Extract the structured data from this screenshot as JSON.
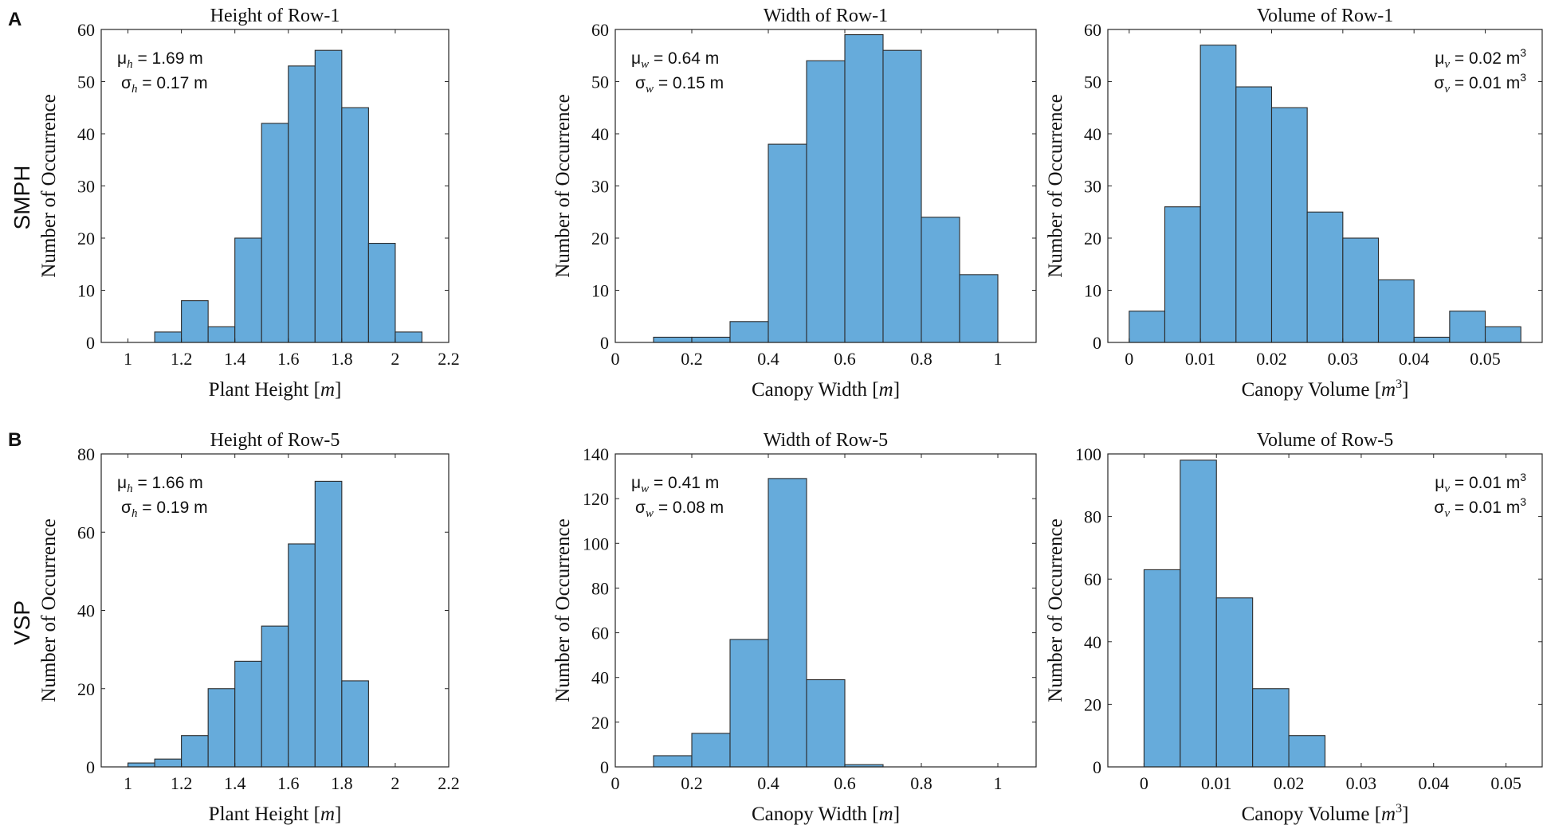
{
  "panels": [
    {
      "letter": "A",
      "row_label": "SMPH"
    },
    {
      "letter": "B",
      "row_label": "VSP"
    }
  ],
  "colors": {
    "bar_fill": "#66abdb",
    "bar_edge": "#2b2b2b",
    "axis": "#262626"
  },
  "chart_data": [
    {
      "type": "bar",
      "title": "Height of Row-1",
      "xlabel_text": "Plant Height ",
      "xlabel_unit": "m",
      "xlabel_sup": "",
      "ylabel": "Number of Occurrence",
      "xlim": [
        0.9,
        2.2
      ],
      "ylim": [
        0,
        60
      ],
      "xticks": [
        1,
        1.2,
        1.4,
        1.6,
        1.8,
        2,
        2.2
      ],
      "xtick_labels": [
        "1",
        "1.2",
        "1.4",
        "1.6",
        "1.8",
        "2",
        "2.2"
      ],
      "yticks": [
        0,
        10,
        20,
        30,
        40,
        50,
        60
      ],
      "ytick_labels": [
        "0",
        "10",
        "20",
        "30",
        "40",
        "50",
        "60"
      ],
      "bin_edges": [
        1.1,
        1.2,
        1.3,
        1.4,
        1.5,
        1.6,
        1.7,
        1.8,
        1.9,
        2.0,
        2.1
      ],
      "values": [
        2,
        8,
        3,
        20,
        42,
        53,
        56,
        45,
        19,
        2
      ],
      "legend_position": "top-left",
      "stats": {
        "mu_base": "μ",
        "mu_sub": "h",
        "mu_value": " = 1.69 m",
        "mu_sup": "",
        "sigma_base": "σ",
        "sigma_sub": "h",
        "sigma_value": " = 0.17 m",
        "sigma_sup": ""
      }
    },
    {
      "type": "bar",
      "title": "Width of Row-1",
      "xlabel_text": "Canopy Width ",
      "xlabel_unit": "m",
      "xlabel_sup": "",
      "ylabel": "Number of Occurrence",
      "xlim": [
        0,
        1.1
      ],
      "ylim": [
        0,
        60
      ],
      "xticks": [
        0,
        0.2,
        0.4,
        0.6,
        0.8,
        1
      ],
      "xtick_labels": [
        "0",
        "0.2",
        "0.4",
        "0.6",
        "0.8",
        "1"
      ],
      "yticks": [
        0,
        10,
        20,
        30,
        40,
        50,
        60
      ],
      "ytick_labels": [
        "0",
        "10",
        "20",
        "30",
        "40",
        "50",
        "60"
      ],
      "bin_edges": [
        0.1,
        0.2,
        0.3,
        0.4,
        0.5,
        0.6,
        0.7,
        0.8,
        0.9,
        1.0
      ],
      "values": [
        1,
        1,
        4,
        38,
        54,
        59,
        56,
        24,
        13
      ],
      "legend_position": "top-left",
      "stats": {
        "mu_base": "μ",
        "mu_sub": "w",
        "mu_value": " = 0.64 m",
        "mu_sup": "",
        "sigma_base": "σ",
        "sigma_sub": "w",
        "sigma_value": " = 0.15 m",
        "sigma_sup": ""
      }
    },
    {
      "type": "bar",
      "title": "Volume of Row-1",
      "xlabel_text": "Canopy Volume ",
      "xlabel_unit": "m",
      "xlabel_sup": "3",
      "ylabel": "Number of Occurrence",
      "xlim": [
        -0.003,
        0.058
      ],
      "ylim": [
        0,
        60
      ],
      "xticks": [
        0,
        0.01,
        0.02,
        0.03,
        0.04,
        0.05
      ],
      "xtick_labels": [
        "0",
        "0.01",
        "0.02",
        "0.03",
        "0.04",
        "0.05"
      ],
      "yticks": [
        0,
        10,
        20,
        30,
        40,
        50,
        60
      ],
      "ytick_labels": [
        "0",
        "10",
        "20",
        "30",
        "40",
        "50",
        "60"
      ],
      "bin_edges": [
        0,
        0.005,
        0.01,
        0.015,
        0.02,
        0.025,
        0.03,
        0.035,
        0.04,
        0.045,
        0.05,
        0.055
      ],
      "values": [
        6,
        26,
        57,
        49,
        45,
        25,
        20,
        12,
        1,
        6,
        3
      ],
      "legend_position": "top-right",
      "stats": {
        "mu_base": "μ",
        "mu_sub": "v",
        "mu_value": " = 0.02 m",
        "mu_sup": "3",
        "sigma_base": "σ",
        "sigma_sub": "v",
        "sigma_value": " = 0.01 m",
        "sigma_sup": "3"
      }
    },
    {
      "type": "bar",
      "title": "Height of Row-5",
      "xlabel_text": "Plant Height ",
      "xlabel_unit": "m",
      "xlabel_sup": "",
      "ylabel": "Number of Occurrence",
      "xlim": [
        0.9,
        2.2
      ],
      "ylim": [
        0,
        80
      ],
      "xticks": [
        1,
        1.2,
        1.4,
        1.6,
        1.8,
        2,
        2.2
      ],
      "xtick_labels": [
        "1",
        "1.2",
        "1.4",
        "1.6",
        "1.8",
        "2",
        "2.2"
      ],
      "yticks": [
        0,
        20,
        40,
        60,
        80
      ],
      "ytick_labels": [
        "0",
        "20",
        "40",
        "60",
        "80"
      ],
      "bin_edges": [
        1.0,
        1.1,
        1.2,
        1.3,
        1.4,
        1.5,
        1.6,
        1.7,
        1.8,
        1.9
      ],
      "values": [
        1,
        2,
        8,
        20,
        27,
        36,
        57,
        73,
        22
      ],
      "legend_position": "top-left",
      "stats": {
        "mu_base": "μ",
        "mu_sub": "h",
        "mu_value": " = 1.66 m",
        "mu_sup": "",
        "sigma_base": "σ",
        "sigma_sub": "h",
        "sigma_value": " = 0.19 m",
        "sigma_sup": ""
      }
    },
    {
      "type": "bar",
      "title": "Width of Row-5",
      "xlabel_text": "Canopy Width ",
      "xlabel_unit": "m",
      "xlabel_sup": "",
      "ylabel": "Number of Occurrence",
      "xlim": [
        0,
        1.1
      ],
      "ylim": [
        0,
        140
      ],
      "xticks": [
        0,
        0.2,
        0.4,
        0.6,
        0.8,
        1
      ],
      "xtick_labels": [
        "0",
        "0.2",
        "0.4",
        "0.6",
        "0.8",
        "1"
      ],
      "yticks": [
        0,
        20,
        40,
        60,
        80,
        100,
        120,
        140
      ],
      "ytick_labels": [
        "0",
        "20",
        "40",
        "60",
        "80",
        "100",
        "120",
        "140"
      ],
      "bin_edges": [
        0.1,
        0.2,
        0.3,
        0.4,
        0.5,
        0.6,
        0.7
      ],
      "values": [
        5,
        15,
        57,
        129,
        39,
        1
      ],
      "legend_position": "top-left",
      "stats": {
        "mu_base": "μ",
        "mu_sub": "w",
        "mu_value": " = 0.41 m",
        "mu_sup": "",
        "sigma_base": "σ",
        "sigma_sub": "w",
        "sigma_value": " = 0.08 m",
        "sigma_sup": ""
      }
    },
    {
      "type": "bar",
      "title": "Volume of Row-5",
      "xlabel_text": "Canopy Volume ",
      "xlabel_unit": "m",
      "xlabel_sup": "3",
      "ylabel": "Number of Occurrence",
      "xlim": [
        -0.005,
        0.055
      ],
      "ylim": [
        0,
        100
      ],
      "xticks": [
        0,
        0.01,
        0.02,
        0.03,
        0.04,
        0.05
      ],
      "xtick_labels": [
        "0",
        "0.01",
        "0.02",
        "0.03",
        "0.04",
        "0.05"
      ],
      "yticks": [
        0,
        20,
        40,
        60,
        80,
        100
      ],
      "ytick_labels": [
        "0",
        "20",
        "40",
        "60",
        "80",
        "100"
      ],
      "bin_edges": [
        0,
        0.005,
        0.01,
        0.015,
        0.02,
        0.025
      ],
      "values": [
        63,
        98,
        54,
        25,
        10
      ],
      "legend_position": "top-right",
      "stats": {
        "mu_base": "μ",
        "mu_sub": "v",
        "mu_value": " = 0.01 m",
        "mu_sup": "3",
        "sigma_base": "σ",
        "sigma_sub": "v",
        "sigma_value": " = 0.01 m",
        "sigma_sup": "3"
      }
    }
  ]
}
